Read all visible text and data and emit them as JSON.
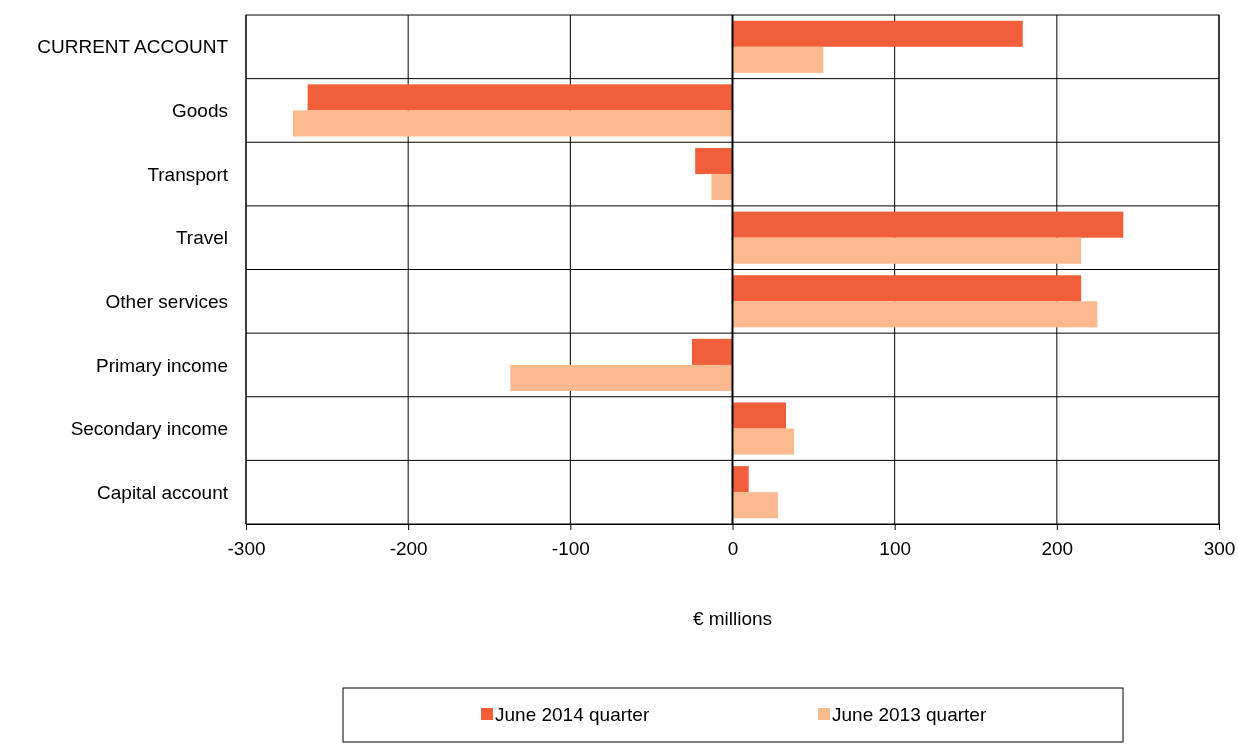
{
  "chart_data": {
    "type": "bar",
    "orientation": "horizontal",
    "xlabel": "€ millions",
    "categories": [
      "CURRENT ACCOUNT",
      "Goods",
      "Transport",
      "Travel",
      "Other services",
      "Primary income",
      "Secondary income",
      "Capital account"
    ],
    "series": [
      {
        "name": "June 2014 quarter",
        "color": "#f15f3a",
        "values": [
          179,
          -262,
          -23,
          241,
          215,
          -25,
          33,
          10
        ]
      },
      {
        "name": "June 2013 quarter",
        "color": "#fbb98f",
        "values": [
          56,
          -271,
          -13,
          215,
          225,
          -137,
          38,
          28
        ]
      }
    ],
    "xlim": [
      -300,
      300
    ],
    "xticks": [
      -300,
      -200,
      -100,
      0,
      100,
      200,
      300
    ],
    "grid": true,
    "legend": "bottom"
  }
}
